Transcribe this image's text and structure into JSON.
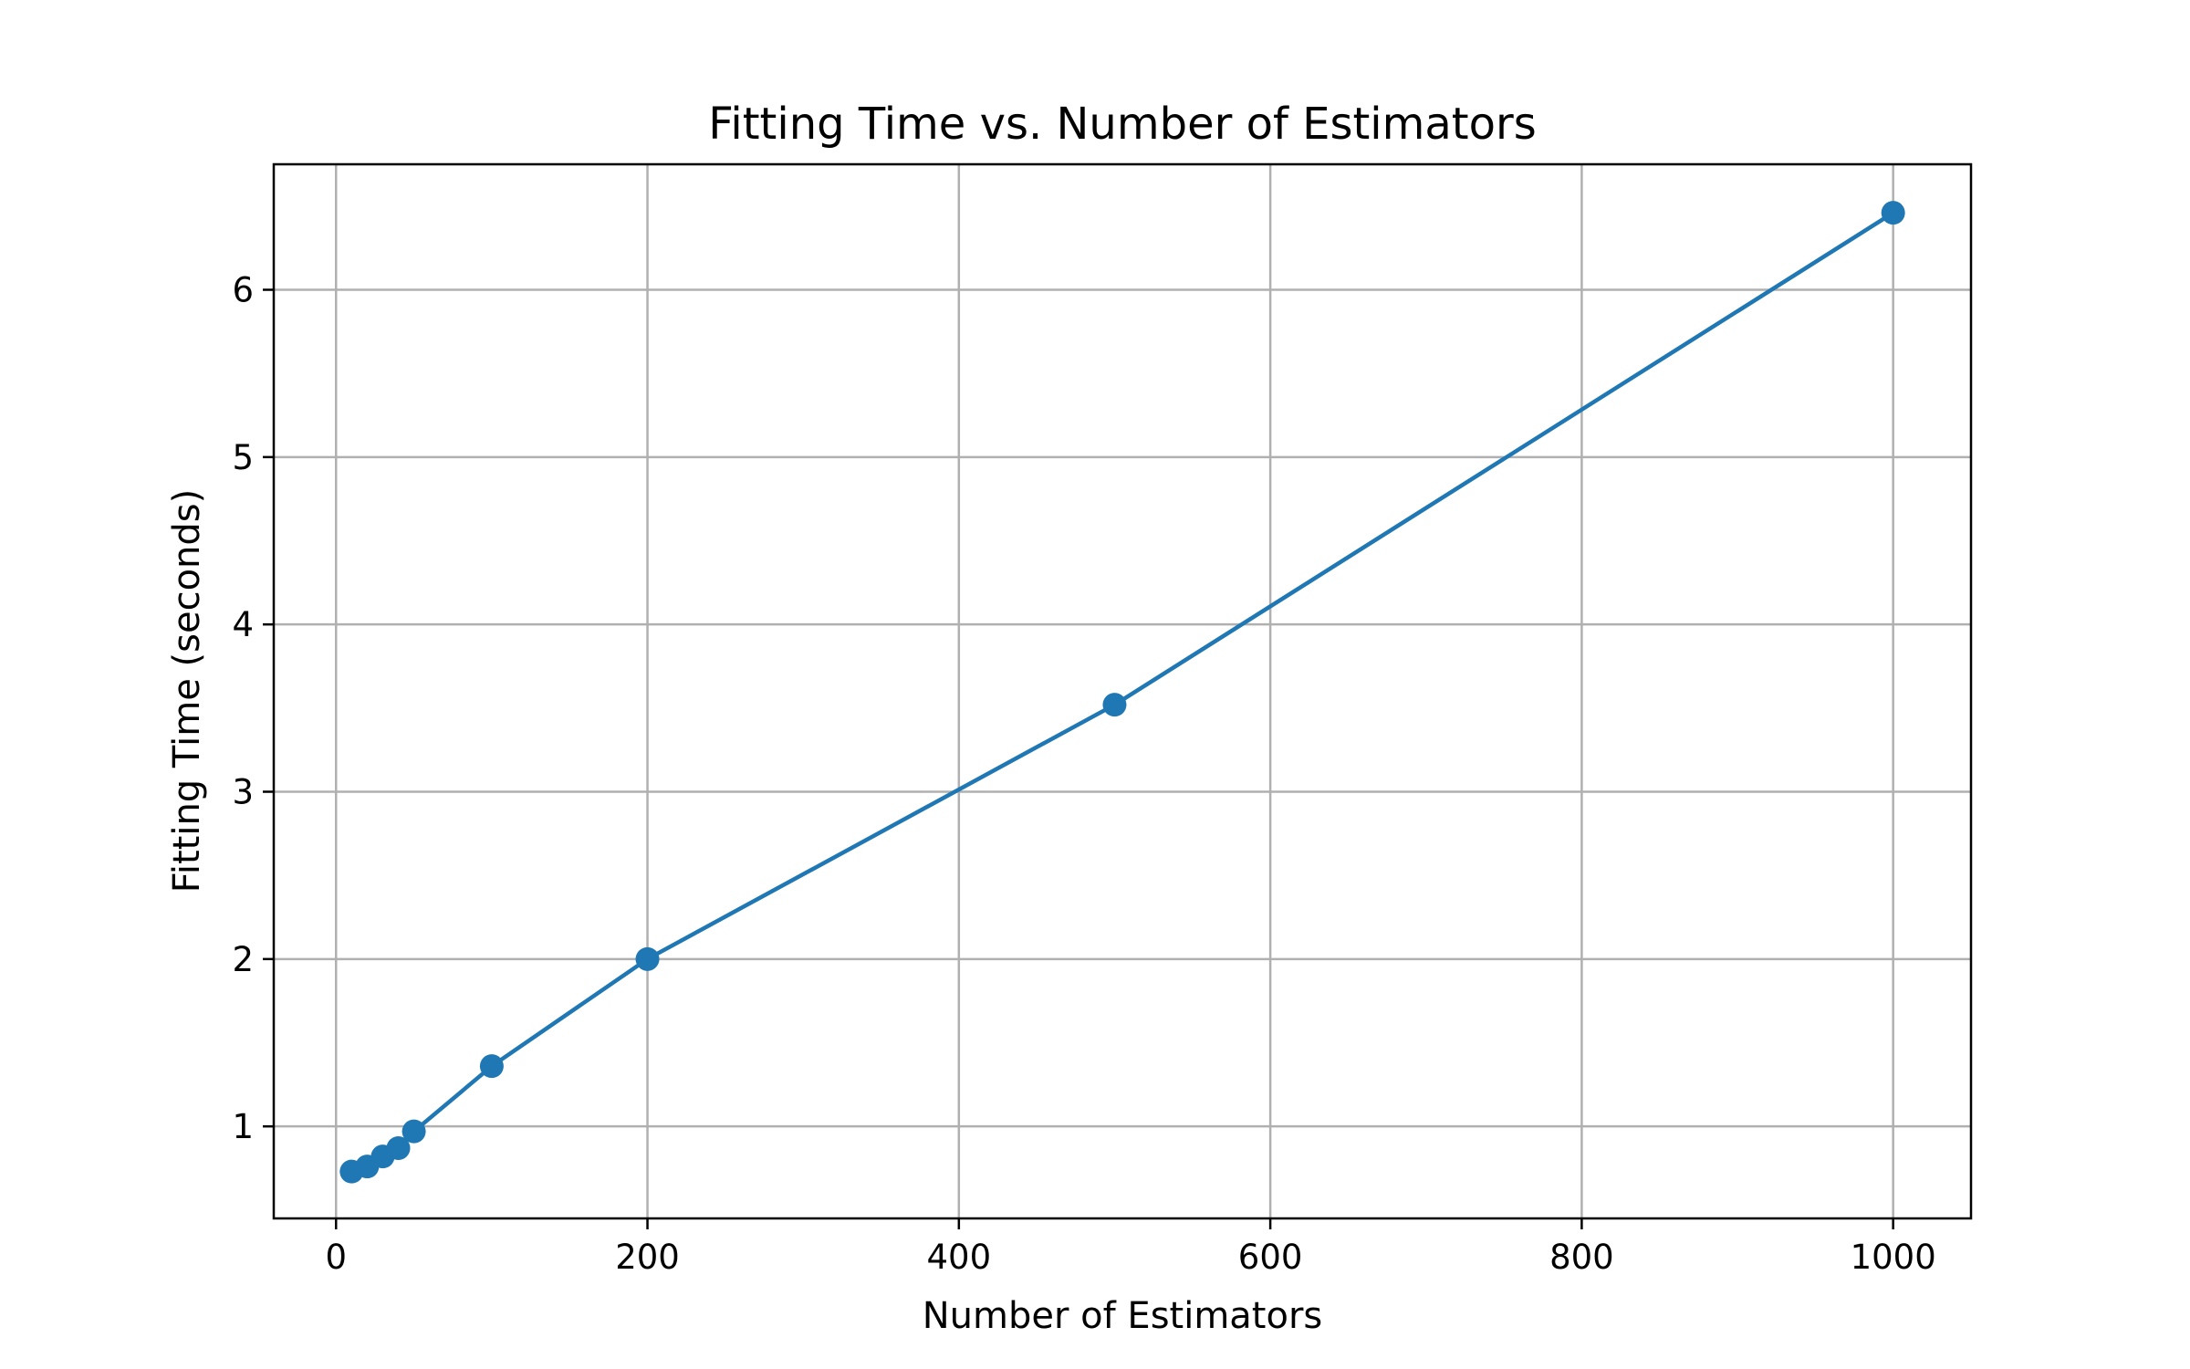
{
  "chart_data": {
    "type": "line",
    "title": "Fitting Time vs. Number of Estimators",
    "xlabel": "Number of Estimators",
    "ylabel": "Fitting Time (seconds)",
    "xlim": [
      -40,
      1050
    ],
    "ylim": [
      0.45,
      6.75
    ],
    "xticks": [
      0,
      200,
      400,
      600,
      800,
      1000
    ],
    "yticks": [
      1,
      2,
      3,
      4,
      5,
      6
    ],
    "grid": true,
    "series": [
      {
        "color": "#1f77b4",
        "marker": "circle",
        "x": [
          10,
          20,
          30,
          40,
          50,
          100,
          200,
          500,
          1000
        ],
        "y": [
          0.73,
          0.76,
          0.82,
          0.87,
          0.97,
          1.36,
          2.0,
          3.52,
          6.46
        ]
      }
    ]
  },
  "colors": {
    "grid": "#b0b0b0",
    "axes": "#000000",
    "background": "#ffffff"
  }
}
